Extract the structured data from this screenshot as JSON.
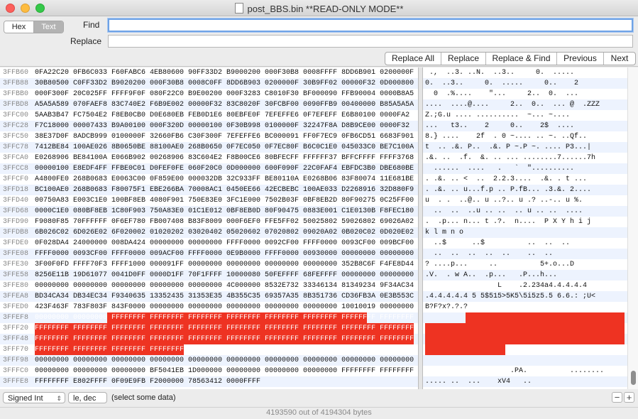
{
  "window": {
    "title": "post_BBS.bin **READ-ONLY MODE**"
  },
  "mode_toggle": {
    "hex": "Hex",
    "text": "Text"
  },
  "find": {
    "label": "Find",
    "value": ""
  },
  "replace": {
    "label": "Replace",
    "value": ""
  },
  "buttons": {
    "replace_all": "Replace All",
    "replace": "Replace",
    "replace_find": "Replace & Find",
    "previous": "Previous",
    "next": "Next"
  },
  "offsets": [
    "3FFB60",
    "3FFB88",
    "3FFBB0",
    "3FFBD8",
    "3FFC00",
    "3FFC28",
    "3FFC50",
    "3FFC78",
    "3FFCA0",
    "3FFCC8",
    "3FFCF0",
    "3FFD18",
    "3FFD40",
    "3FFD68",
    "3FFD90",
    "3FFDB8",
    "3FFDE0",
    "3FFE08",
    "3FFE30",
    "3FFE58",
    "3FFE80",
    "3FFEA8",
    "3FFED0",
    "3FFEF8",
    "3FFF20",
    "3FFF48",
    "3FFF70",
    "3FFF98",
    "3FFFC0",
    "3FFFE8"
  ],
  "hex_rows": [
    "0FA22C20 0FB6C033 F60FABC6 4EB80600 90FF33D2 B9000200 000F30B8 0008FFFF 8DD6B901 0200000F",
    "30B80500 C0FF33D2 B9020200 000F30B8 0008C0FF 8DD6B903 0200000F 30B9FF02 00000F32 0D000800",
    "000F300F 20C025FF FFFF9F0F 080F22C0 B9E00200 000F3283 C8010F30 BF000090 FFB90004 0000B8A5",
    "A5A5A589 070FAEF8 83C740E2 F6B9E002 00000F32 83C8020F 30FCBF00 0090FFB9 00400000 B85A5A5A",
    "5AAB3B47 FC7504E2 F8EB0CB0 D0E680EB FEB0D1E6 80EBFE0F 7EFEFFE6 0F7EFEFF E6B80100 0000FA2",
    "F7C18000 00007433 B9A00100 000F320D 00000100 0F30B998 0100000F 32247F8A D8B9CE00 0000F32",
    "38E37D0F 8ADCB999 0100000F 32660FB6 C30F300F 7EFEFFE6 BC000091 FF0F7EC9 0FB6CD51 6683F901",
    "7412BE84 100AE026 8B0650BE 88100AE0 268B0650 0F7EC050 0F7EC80F B6C0C1E0 045033C0 BE7C100A",
    "E0268906 BE84100A E066B902 00268906 83C604E2 F8B00CE6 80BFECFF FFFFFF37 BFFCFFFF FFFF3768",
    "00000100 E8EDF4FF FFBE0C01 D0FEF0FE 060F20C0 0D000000 600F090F 22C0FAF4 EBFDC3B0 DBE680BE",
    "A4800FE0 268B0683 E0063C00 0F859E00 000032DB 32C933FF BE80110A E0268B06 83F80074 11E681BE",
    "BC100AE0 268B0683 F80075F1 EBE266BA 70008AC1 0450EE66 42ECBEBC 100AE033 D2268916 32D880F9",
    "00750A83 E003C1E0 100BF8EB 4080F901 750E83E0 3FC1E000 7502B03F 0BF8EB2D 80F90275 0C25FF00",
    "0000C1E0 080BF8EB 1C80F903 750A83E0 01C1E012 0BF8EB0D 80F90475 0883E001 C1E0130B F8FEC180",
    "F9080F85 70FFFFFF 0F6EF780 FB007408 B83F8009 000F6EF0 FFE5FF02 50025802 59026802 69026A02",
    "6B026C02 6D026E02 6F020002 01020202 03020402 05020602 07020802 09020A02 0B020C02 0D020E02",
    "0F028DA4 24000000 008DA424 00000000 00000000 FFFF0000 0092CF00 FFFF0000 0093CF00 009BCF00",
    "FFFF0000 0093CF00 FFFF0000 009ACF00 FFFF0000 0E9B0000 FFFF0000 00930000 00000000 00000000",
    "3F00F0FD FFFF70F3 FFFF1000 000091FF 00000000 00000000 00000000 00000000 352B8C6F F4FE8D44",
    "8256E11B 19D61077 0041D0FF 0000D1FF 70F1FFFF 10000080 50FEFFFF 68FEFFFF 00000000 00000000",
    "00000000 00000000 00000000 00000000 00000000 4C000000 8532E732 33346134 81349234 9F34AC34",
    "BD34CA34 DB34EC34 F9340635 13352435 31353E35 4B355C35 69357A35 8B351736 CD36FB3A 0E3B553C",
    "423F463F 783F803F 843F0000 00000000 00000000 00000000 00000000 00000000 10010019 00000000",
    "00000000 00000000 FFFFFFFF FFFFFFFF FFFFFFFF FFFFFFFF FFFFFFFF FFFFFFFF FFFFFFFF FFFFFFFF",
    "FFFFFFFF FFFFFFFF FFFFFFFF FFFFFFFF FFFFFFFF FFFFFFFF FFFFFFFF FFFFFFFF FFFFFFFF FFFFFFFF",
    "FFFFFFFF FFFFFFFF FFFFFFFF FFFFFFFF FFFFFFFF FFFFFFFF FFFFFFFF FFFFFFFF FFFFFFFF FFFFFFFF",
    "FFFFFFFF FFFFFFFF FFFFFFFF FFFFFFFF 00000000 00000000 00000000 00000000 00000000 00000000",
    "00000000 00000000 00000000 00000000 00000000 00000000 00000000 00000000 00000000 00000000",
    "00000000 00000000 00000000 BF5041EB 1D000000 00000000 00000000 00000000 FFFFFFFF FFFFFFFF",
    "FFFFFFFF E802FFFF 0F09E9FB F2000000 78563412 0000FFFF"
  ],
  "text_rows": [
    " .,  ..3. ..N.  ..3..     0.  .....",
    "0.  ..3..     0.  .....     0..    2",
    "  0  .%....    \"...     2..  0.  ...",
    "....  ....@....     2..  0..  ... @  .ZZZ",
    "Z.;G.u .... ..........  ~... ~....",
    "...   t3..    2     0..    2$  ....",
    "8.} ....    2f  . 0 ~.... .. ~. ..Qf..",
    "t  .. .&. P..  .&. P ~.P ~. .... P3...|",
    ".&. ..  .f.  &. .. ... ........7......7h",
    "  ......  ....   .   `  \"..........",
    ". .&. .. <  ..  2.2.3....  .&. . t ...",
    ". .&. .. u...f.p .. P.fB... .3.&. 2....",
    "u  . .  ..@.. u ..?.. u .? ..-.. u %.",
    "  ..  ..  ..u .. ..  .. u .. ..  ....",
    ".  .p... n... t .?.  n....  P X Y h i j",
    "k l m n o",
    "  ..$      ..$          ..  ..  ..",
    "  ..  ..  ..  ..  ..    ..  ..",
    "? ....p...     ..          5+.o...D",
    ".V.  . w A..  .p...   .P...h...",
    "                 L    .2.234a4.4.4.4.4",
    ".4.4.4.4.4 5 5$515>5K5\\5i5z5.5 6.6.: ;U<",
    "B?F?x?.?.?",
    "",
    "",
    "",
    "",
    "",
    "                    .PA.          ........",
    "..... ..  ...    xV4   .."
  ],
  "status": {
    "type_select": "Signed Int",
    "endian_select": "le, dec",
    "selection_text": "(select some data)",
    "minus": "−",
    "plus": "+"
  },
  "footer": {
    "text": "4193590 out of 4194304 bytes"
  },
  "colors": {
    "selection": "#ee3322",
    "stripe": "#edf3fe"
  }
}
